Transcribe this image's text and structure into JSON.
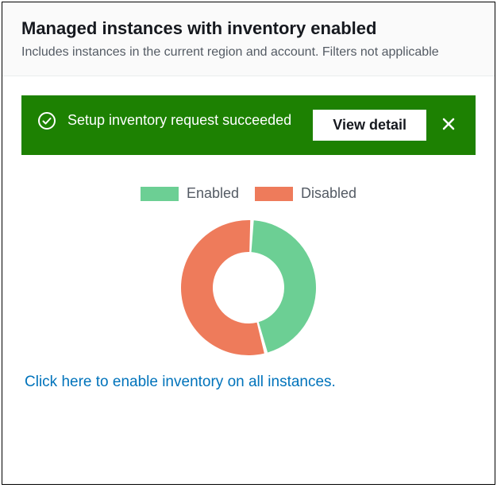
{
  "header": {
    "title": "Managed instances with inventory enabled",
    "subtitle": "Includes instances in the current region and account. Filters not applicable"
  },
  "flash": {
    "message": "Setup inventory request succeeded",
    "button_label": "View detail",
    "background_color": "#1d8102",
    "text_color": "#ffffff"
  },
  "chart": {
    "type": "donut",
    "legend": [
      {
        "label": "Enabled",
        "color": "#6ccf94"
      },
      {
        "label": "Disabled",
        "color": "#ee7b5b"
      }
    ],
    "slices": [
      {
        "name": "Enabled",
        "value": 45,
        "color": "#6ccf94"
      },
      {
        "name": "Disabled",
        "value": 55,
        "color": "#ee7b5b"
      }
    ],
    "outer_radius": 85,
    "inner_radius": 45,
    "gap_degrees": 3,
    "start_angle_deg": 3,
    "background_color": "#ffffff"
  },
  "link": {
    "text": "Click here to enable inventory on all instances.",
    "color": "#0073bb"
  }
}
